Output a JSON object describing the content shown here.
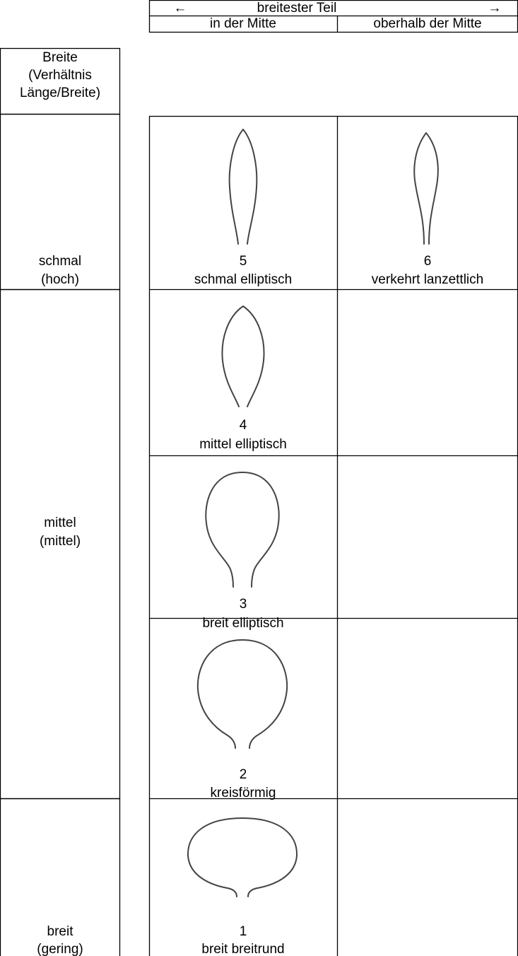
{
  "header": {
    "left_arrow": "←",
    "span": "breitester Teil",
    "right_arrow": "→",
    "columns": [
      "in der Mitte",
      "oberhalb der Mitte"
    ]
  },
  "row_header": [
    "Breite",
    "(Verhältnis",
    "Länge/Breite)"
  ],
  "rows": [
    {
      "label": [
        "schmal",
        "(hoch)"
      ]
    },
    {
      "label": [
        "mittel",
        "(mittel)"
      ]
    },
    {
      "label": [
        "breit",
        "(gering)"
      ]
    }
  ],
  "cells": [
    {
      "number": "5",
      "name": "schmal elliptisch"
    },
    {
      "number": "6",
      "name": "verkehrt lanzettlich"
    },
    {
      "number": "4",
      "name": "mittel elliptisch"
    },
    {
      "number": "3",
      "name": "breit elliptisch"
    },
    {
      "number": "2",
      "name": "kreisförmig"
    },
    {
      "number": "1",
      "name": "breit breitrund"
    }
  ]
}
